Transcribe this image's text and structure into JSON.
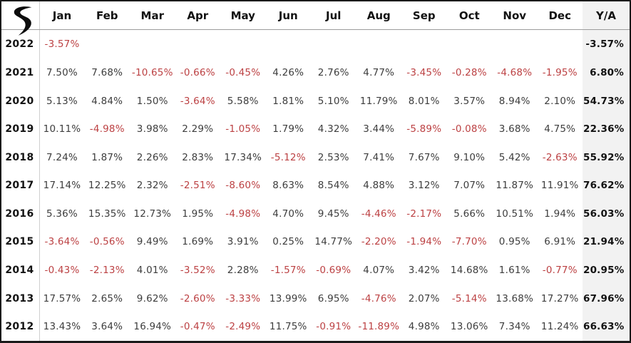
{
  "chart_data": {
    "type": "table",
    "columns": [
      "Jan",
      "Feb",
      "Mar",
      "Apr",
      "May",
      "Jun",
      "Jul",
      "Aug",
      "Sep",
      "Oct",
      "Nov",
      "Dec",
      "Y/A"
    ],
    "rows": [
      {
        "year": "2022",
        "months": [
          "-3.57%",
          "",
          "",
          "",
          "",
          "",
          "",
          "",
          "",
          "",
          "",
          ""
        ],
        "ya": "-3.57%"
      },
      {
        "year": "2021",
        "months": [
          "7.50%",
          "7.68%",
          "-10.65%",
          "-0.66%",
          "-0.45%",
          "4.26%",
          "2.76%",
          "4.77%",
          "-3.45%",
          "-0.28%",
          "-4.68%",
          "-1.95%"
        ],
        "ya": "6.80%"
      },
      {
        "year": "2020",
        "months": [
          "5.13%",
          "4.84%",
          "1.50%",
          "-3.64%",
          "5.58%",
          "1.81%",
          "5.10%",
          "11.79%",
          "8.01%",
          "3.57%",
          "8.94%",
          "2.10%"
        ],
        "ya": "54.73%"
      },
      {
        "year": "2019",
        "months": [
          "10.11%",
          "-4.98%",
          "3.98%",
          "2.29%",
          "-1.05%",
          "1.79%",
          "4.32%",
          "3.44%",
          "-5.89%",
          "-0.08%",
          "3.68%",
          "4.75%"
        ],
        "ya": "22.36%"
      },
      {
        "year": "2018",
        "months": [
          "7.24%",
          "1.87%",
          "2.26%",
          "2.83%",
          "17.34%",
          "-5.12%",
          "2.53%",
          "7.41%",
          "7.67%",
          "9.10%",
          "5.42%",
          "-2.63%"
        ],
        "ya": "55.92%"
      },
      {
        "year": "2017",
        "months": [
          "17.14%",
          "12.25%",
          "2.32%",
          "-2.51%",
          "-8.60%",
          "8.63%",
          "8.54%",
          "4.88%",
          "3.12%",
          "7.07%",
          "11.87%",
          "11.91%"
        ],
        "ya": "76.62%"
      },
      {
        "year": "2016",
        "months": [
          "5.36%",
          "15.35%",
          "12.73%",
          "1.95%",
          "-4.98%",
          "4.70%",
          "9.45%",
          "-4.46%",
          "-2.17%",
          "5.66%",
          "10.51%",
          "1.94%"
        ],
        "ya": "56.03%"
      },
      {
        "year": "2015",
        "months": [
          "-3.64%",
          "-0.56%",
          "9.49%",
          "1.69%",
          "3.91%",
          "0.25%",
          "14.77%",
          "-2.20%",
          "-1.94%",
          "-7.70%",
          "0.95%",
          "6.91%"
        ],
        "ya": "21.94%"
      },
      {
        "year": "2014",
        "months": [
          "-0.43%",
          "-2.13%",
          "4.01%",
          "-3.52%",
          "2.28%",
          "-1.57%",
          "-0.69%",
          "4.07%",
          "3.42%",
          "14.68%",
          "1.61%",
          "-0.77%"
        ],
        "ya": "20.95%"
      },
      {
        "year": "2013",
        "months": [
          "17.57%",
          "2.65%",
          "9.62%",
          "-2.60%",
          "-3.33%",
          "13.99%",
          "6.95%",
          "-4.76%",
          "2.07%",
          "-5.14%",
          "13.68%",
          "17.27%"
        ],
        "ya": "67.96%"
      },
      {
        "year": "2012",
        "months": [
          "13.43%",
          "3.64%",
          "16.94%",
          "-0.47%",
          "-2.49%",
          "11.75%",
          "-0.91%",
          "-11.89%",
          "4.98%",
          "13.06%",
          "7.34%",
          "11.24%"
        ],
        "ya": "66.63%"
      }
    ]
  },
  "logo": {
    "icon": "r-swoosh-logo"
  },
  "colors": {
    "negative": "#bc4143",
    "positive": "#3d3d3d",
    "strong": "#121212",
    "ya_column_bg": "#f2f2f2",
    "header_rule": "#9b9b9b",
    "year_divider": "#cfcfcf",
    "frame": "#1a1a1a"
  }
}
